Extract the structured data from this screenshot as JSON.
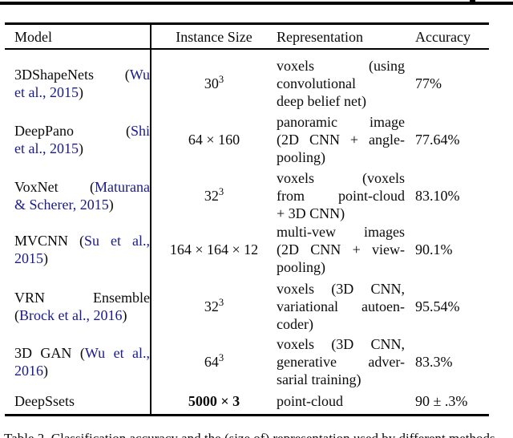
{
  "colors": {
    "link": "#1a1a8f",
    "text": "#0b0b0b",
    "rule": "#000000"
  },
  "table": {
    "headers": {
      "model": "Model",
      "instance": "Instance Size",
      "representation": "Representation",
      "accuracy": "Accuracy"
    },
    "rows": [
      {
        "model_lines": [
          {
            "justify": true,
            "segs": [
              {
                "t": "3DShapeNets ("
              },
              {
                "t": "Wu",
                "link": true
              }
            ]
          },
          {
            "justify": false,
            "segs": [
              {
                "t": "et al., 2015",
                "link": true
              },
              {
                "t": ")"
              }
            ]
          }
        ],
        "instance": {
          "bold": false,
          "segs": [
            {
              "t": "30"
            },
            {
              "t": "3",
              "sup": true
            }
          ]
        },
        "rep_lines": [
          {
            "t": "voxels (using",
            "justify": true
          },
          {
            "t": "convolutional",
            "justify": false
          },
          {
            "t": "deep belief net)",
            "justify": false
          }
        ],
        "accuracy": "77%"
      },
      {
        "model_lines": [
          {
            "justify": true,
            "segs": [
              {
                "t": "DeepPano ("
              },
              {
                "t": "Shi",
                "link": true
              }
            ]
          },
          {
            "justify": false,
            "segs": [
              {
                "t": "et al., 2015",
                "link": true
              },
              {
                "t": ")"
              }
            ]
          }
        ],
        "instance": {
          "bold": false,
          "segs": [
            {
              "t": "64 × 160"
            }
          ]
        },
        "rep_lines": [
          {
            "t": "panoramic image",
            "justify": true
          },
          {
            "t": "(2D CNN + angle-",
            "justify": true
          },
          {
            "t": "pooling)",
            "justify": false
          }
        ],
        "accuracy": "77.64%"
      },
      {
        "model_lines": [
          {
            "justify": true,
            "segs": [
              {
                "t": "VoxNet ("
              },
              {
                "t": "Maturana",
                "link": true
              }
            ]
          },
          {
            "justify": false,
            "segs": [
              {
                "t": "& Scherer, 2015",
                "link": true
              },
              {
                "t": ")"
              }
            ]
          }
        ],
        "instance": {
          "bold": false,
          "segs": [
            {
              "t": "32"
            },
            {
              "t": "3",
              "sup": true
            }
          ]
        },
        "rep_lines": [
          {
            "t": "voxels (voxels",
            "justify": true
          },
          {
            "t": "from point-cloud",
            "justify": true
          },
          {
            "t": "+ 3D CNN)",
            "justify": false
          }
        ],
        "accuracy": "83.10%"
      },
      {
        "model_lines": [
          {
            "justify": true,
            "segs": [
              {
                "t": "MVCNN ("
              },
              {
                "t": "Su et al.,",
                "link": true
              }
            ]
          },
          {
            "justify": false,
            "segs": [
              {
                "t": "2015",
                "link": true
              },
              {
                "t": ")"
              }
            ]
          }
        ],
        "instance": {
          "bold": false,
          "segs": [
            {
              "t": "164 × 164 × 12"
            }
          ]
        },
        "rep_lines": [
          {
            "t": "multi-vew images",
            "justify": true
          },
          {
            "t": "(2D CNN + view-",
            "justify": true
          },
          {
            "t": "pooling)",
            "justify": false
          }
        ],
        "accuracy": "90.1%"
      },
      {
        "model_lines": [
          {
            "justify": true,
            "segs": [
              {
                "t": "VRN Ensemble"
              }
            ]
          },
          {
            "justify": false,
            "segs": [
              {
                "t": "("
              },
              {
                "t": "Brock et al., 2016",
                "link": true
              },
              {
                "t": ")"
              }
            ]
          }
        ],
        "instance": {
          "bold": false,
          "segs": [
            {
              "t": "32"
            },
            {
              "t": "3",
              "sup": true
            }
          ]
        },
        "rep_lines": [
          {
            "t": "voxels (3D CNN,",
            "justify": true
          },
          {
            "t": "variational autoen-",
            "justify": true
          },
          {
            "t": "coder)",
            "justify": false
          }
        ],
        "accuracy": "95.54%"
      },
      {
        "model_lines": [
          {
            "justify": true,
            "segs": [
              {
                "t": "3D GAN ("
              },
              {
                "t": "Wu et al.,",
                "link": true
              }
            ]
          },
          {
            "justify": false,
            "segs": [
              {
                "t": "2016",
                "link": true
              },
              {
                "t": ")"
              }
            ]
          }
        ],
        "instance": {
          "bold": false,
          "segs": [
            {
              "t": "64"
            },
            {
              "t": "3",
              "sup": true
            }
          ]
        },
        "rep_lines": [
          {
            "t": "voxels (3D CNN,",
            "justify": true
          },
          {
            "t": "generative adver-",
            "justify": true
          },
          {
            "t": "sarial training)",
            "justify": false
          }
        ],
        "accuracy": "83.3%"
      },
      {
        "model_lines": [
          {
            "justify": false,
            "segs": [
              {
                "t": "DeepSsets"
              }
            ]
          }
        ],
        "instance": {
          "bold": true,
          "segs": [
            {
              "t": "5000 × 3"
            }
          ]
        },
        "rep_lines": [
          {
            "t": "point-cloud",
            "justify": false
          }
        ],
        "accuracy": "90 ± .3%"
      }
    ],
    "caption": "Table 2. Classification accuracy and the (size of) representation used by different methods."
  }
}
